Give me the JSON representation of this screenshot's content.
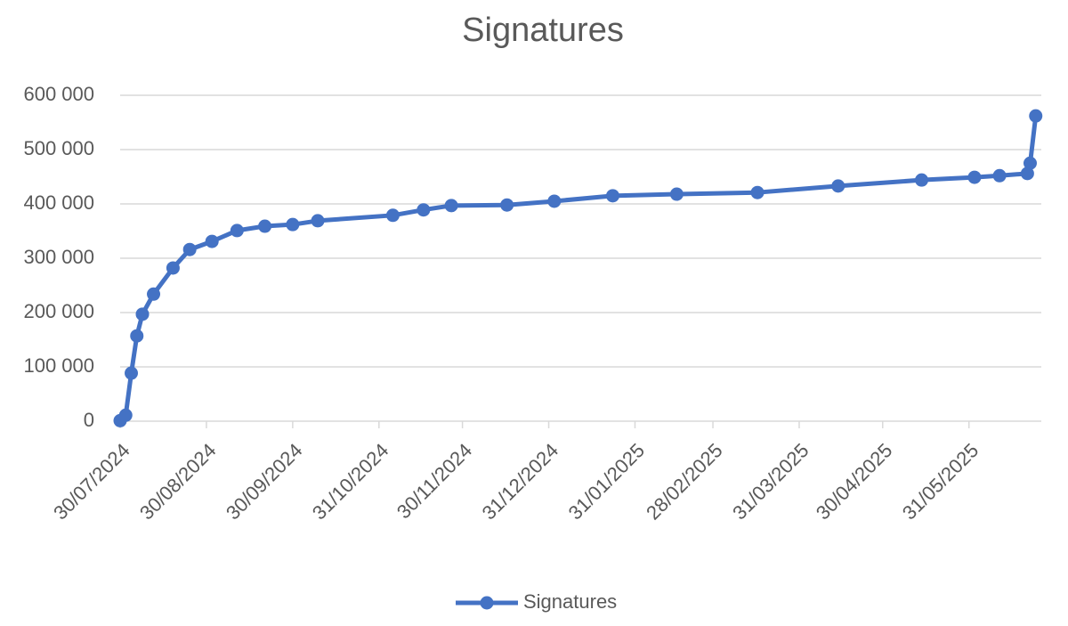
{
  "chart_data": {
    "type": "line",
    "title": "Signatures",
    "x": [
      "30/07/2024",
      "01/08/2024",
      "03/08/2024",
      "05/08/2024",
      "07/08/2024",
      "11/08/2024",
      "18/08/2024",
      "24/08/2024",
      "01/09/2024",
      "10/09/2024",
      "20/09/2024",
      "30/09/2024",
      "09/10/2024",
      "05/11/2024",
      "16/11/2024",
      "26/11/2024",
      "16/12/2024",
      "02/01/2025",
      "23/01/2025",
      "15/02/2025",
      "16/03/2025",
      "14/04/2025",
      "14/05/2025",
      "02/06/2025",
      "11/06/2025",
      "21/06/2025",
      "22/06/2025",
      "24/06/2025"
    ],
    "series": [
      {
        "name": "Signatures",
        "color": "#4472c4",
        "values": [
          1000,
          11000,
          88500,
          157000,
          197000,
          234000,
          282000,
          316000,
          331000,
          351000,
          359000,
          362000,
          369000,
          379000,
          389000,
          397000,
          398000,
          405000,
          415000,
          418000,
          421000,
          433000,
          444000,
          449000,
          452000,
          456000,
          475000,
          562000
        ]
      }
    ],
    "xlim": [
      "30/07/2024",
      "26/06/2025"
    ],
    "xticks": [
      "30/07/2024",
      "30/08/2024",
      "30/09/2024",
      "31/10/2024",
      "30/11/2024",
      "31/12/2024",
      "31/01/2025",
      "28/02/2025",
      "31/03/2025",
      "30/04/2025",
      "31/05/2025"
    ],
    "ylim": [
      0,
      600000
    ],
    "yticks": [
      0,
      {
        "value": 100000,
        "label": "100 000"
      },
      {
        "value": 200000,
        "label": "200 000"
      },
      {
        "value": 300000,
        "label": "300 000"
      },
      {
        "value": 400000,
        "label": "400 000"
      },
      {
        "value": 500000,
        "label": "500 000"
      },
      {
        "value": 600000,
        "label": "600 000"
      }
    ],
    "grid": true,
    "legend": "bottom"
  }
}
